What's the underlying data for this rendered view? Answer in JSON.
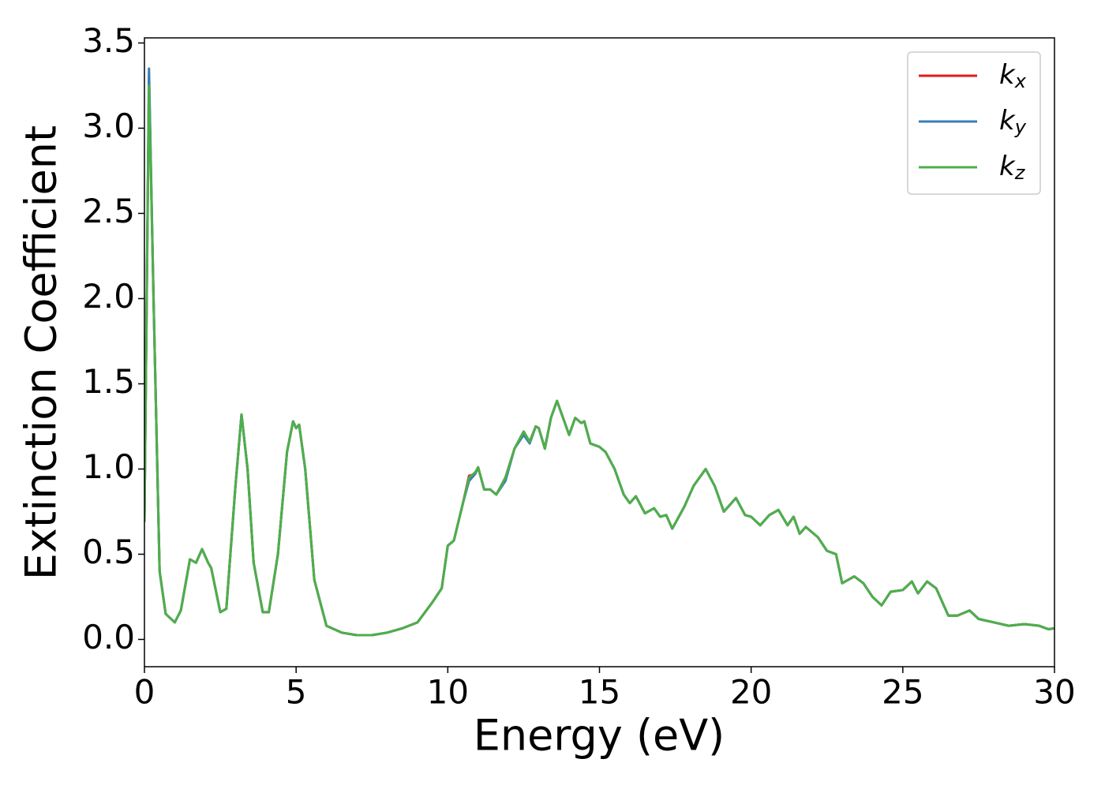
{
  "chart_data": {
    "type": "line",
    "xlabel": "Energy (eV)",
    "ylabel": "Extinction Coefficient",
    "x": [
      0,
      0.15,
      0.3,
      0.5,
      0.7,
      1.0,
      1.2,
      1.5,
      1.7,
      1.9,
      2.1,
      2.2,
      2.5,
      2.7,
      3.0,
      3.2,
      3.4,
      3.6,
      3.9,
      4.1,
      4.4,
      4.7,
      4.9,
      5.0,
      5.1,
      5.3,
      5.6,
      6.0,
      6.5,
      7.0,
      7.5,
      8.0,
      8.5,
      9.0,
      9.5,
      9.8,
      10.0,
      10.2,
      10.5,
      10.7,
      10.9,
      11.0,
      11.2,
      11.4,
      11.6,
      11.9,
      12.2,
      12.5,
      12.7,
      12.9,
      13.0,
      13.2,
      13.4,
      13.6,
      13.8,
      14.0,
      14.2,
      14.4,
      14.5,
      14.7,
      15.0,
      15.2,
      15.5,
      15.8,
      16.0,
      16.2,
      16.5,
      16.8,
      17.0,
      17.2,
      17.4,
      17.8,
      18.1,
      18.5,
      18.8,
      19.1,
      19.5,
      19.8,
      20.0,
      20.3,
      20.6,
      20.9,
      21.2,
      21.4,
      21.6,
      21.8,
      22.2,
      22.5,
      22.8,
      23.0,
      23.4,
      23.7,
      24.0,
      24.3,
      24.6,
      25.0,
      25.3,
      25.5,
      25.8,
      26.1,
      26.5,
      26.8,
      27.2,
      27.5,
      28.0,
      28.5,
      29.0,
      29.5,
      29.8,
      30.0
    ],
    "series": [
      {
        "name": "kx",
        "color": "#e41a1c",
        "values": [
          0.69,
          3.3,
          2.0,
          0.4,
          0.15,
          0.1,
          0.17,
          0.47,
          0.45,
          0.53,
          0.45,
          0.42,
          0.16,
          0.18,
          0.9,
          1.32,
          1.0,
          0.45,
          0.16,
          0.16,
          0.5,
          1.1,
          1.28,
          1.24,
          1.26,
          1.0,
          0.35,
          0.08,
          0.04,
          0.025,
          0.025,
          0.04,
          0.065,
          0.1,
          0.22,
          0.3,
          0.55,
          0.58,
          0.8,
          0.96,
          0.97,
          1.01,
          0.88,
          0.88,
          0.85,
          0.95,
          1.12,
          1.22,
          1.16,
          1.25,
          1.24,
          1.12,
          1.3,
          1.4,
          1.3,
          1.2,
          1.3,
          1.27,
          1.28,
          1.15,
          1.13,
          1.1,
          1.0,
          0.85,
          0.8,
          0.84,
          0.74,
          0.77,
          0.72,
          0.73,
          0.65,
          0.78,
          0.9,
          1.0,
          0.9,
          0.75,
          0.83,
          0.73,
          0.72,
          0.67,
          0.73,
          0.76,
          0.67,
          0.72,
          0.62,
          0.66,
          0.6,
          0.52,
          0.5,
          0.33,
          0.37,
          0.33,
          0.25,
          0.2,
          0.28,
          0.29,
          0.34,
          0.27,
          0.34,
          0.3,
          0.14,
          0.14,
          0.17,
          0.12,
          0.1,
          0.08,
          0.09,
          0.08,
          0.06,
          0.065
        ]
      },
      {
        "name": "ky",
        "color": "#377eb8",
        "values": [
          0.69,
          3.35,
          2.0,
          0.4,
          0.15,
          0.1,
          0.17,
          0.47,
          0.45,
          0.53,
          0.45,
          0.42,
          0.16,
          0.18,
          0.9,
          1.32,
          1.0,
          0.45,
          0.16,
          0.16,
          0.5,
          1.1,
          1.28,
          1.24,
          1.26,
          1.0,
          0.35,
          0.08,
          0.04,
          0.025,
          0.025,
          0.04,
          0.065,
          0.1,
          0.22,
          0.3,
          0.55,
          0.58,
          0.8,
          0.93,
          0.97,
          1.01,
          0.88,
          0.88,
          0.85,
          0.93,
          1.12,
          1.2,
          1.15,
          1.25,
          1.24,
          1.12,
          1.3,
          1.4,
          1.3,
          1.2,
          1.3,
          1.27,
          1.28,
          1.15,
          1.13,
          1.1,
          1.0,
          0.85,
          0.8,
          0.84,
          0.74,
          0.77,
          0.72,
          0.73,
          0.65,
          0.78,
          0.9,
          1.0,
          0.9,
          0.75,
          0.83,
          0.73,
          0.72,
          0.67,
          0.73,
          0.76,
          0.67,
          0.72,
          0.62,
          0.66,
          0.6,
          0.52,
          0.5,
          0.33,
          0.37,
          0.33,
          0.25,
          0.2,
          0.28,
          0.29,
          0.34,
          0.27,
          0.34,
          0.3,
          0.14,
          0.14,
          0.17,
          0.12,
          0.1,
          0.08,
          0.09,
          0.08,
          0.06,
          0.065
        ]
      },
      {
        "name": "kz",
        "color": "#4daf4a",
        "values": [
          0.69,
          3.25,
          2.0,
          0.4,
          0.15,
          0.1,
          0.17,
          0.47,
          0.45,
          0.53,
          0.45,
          0.42,
          0.16,
          0.18,
          0.9,
          1.32,
          1.0,
          0.45,
          0.16,
          0.16,
          0.5,
          1.1,
          1.28,
          1.24,
          1.26,
          1.0,
          0.35,
          0.08,
          0.04,
          0.025,
          0.025,
          0.04,
          0.065,
          0.1,
          0.22,
          0.3,
          0.55,
          0.58,
          0.8,
          0.95,
          0.98,
          1.01,
          0.88,
          0.88,
          0.85,
          0.95,
          1.12,
          1.22,
          1.16,
          1.25,
          1.24,
          1.12,
          1.3,
          1.4,
          1.3,
          1.2,
          1.3,
          1.27,
          1.28,
          1.15,
          1.13,
          1.1,
          1.0,
          0.85,
          0.8,
          0.84,
          0.74,
          0.77,
          0.72,
          0.73,
          0.65,
          0.78,
          0.9,
          1.0,
          0.9,
          0.75,
          0.83,
          0.73,
          0.72,
          0.67,
          0.73,
          0.76,
          0.67,
          0.72,
          0.62,
          0.66,
          0.6,
          0.52,
          0.5,
          0.33,
          0.37,
          0.33,
          0.25,
          0.2,
          0.28,
          0.29,
          0.34,
          0.27,
          0.34,
          0.3,
          0.14,
          0.14,
          0.17,
          0.12,
          0.1,
          0.08,
          0.09,
          0.08,
          0.06,
          0.065
        ]
      }
    ],
    "xlim": [
      0,
      30
    ],
    "xticks": [
      0,
      5,
      10,
      15,
      20,
      25,
      30
    ],
    "ylim": [
      -0.16,
      3.53
    ],
    "yticks": [
      {
        "value": 0,
        "label": "0.0"
      },
      0.5,
      {
        "value": 1,
        "label": "1.0"
      },
      1.5,
      {
        "value": 2,
        "label": "2.0"
      },
      2.5,
      {
        "value": 3,
        "label": "3.0"
      },
      3.5
    ],
    "grid": false,
    "legend": "upper right"
  }
}
